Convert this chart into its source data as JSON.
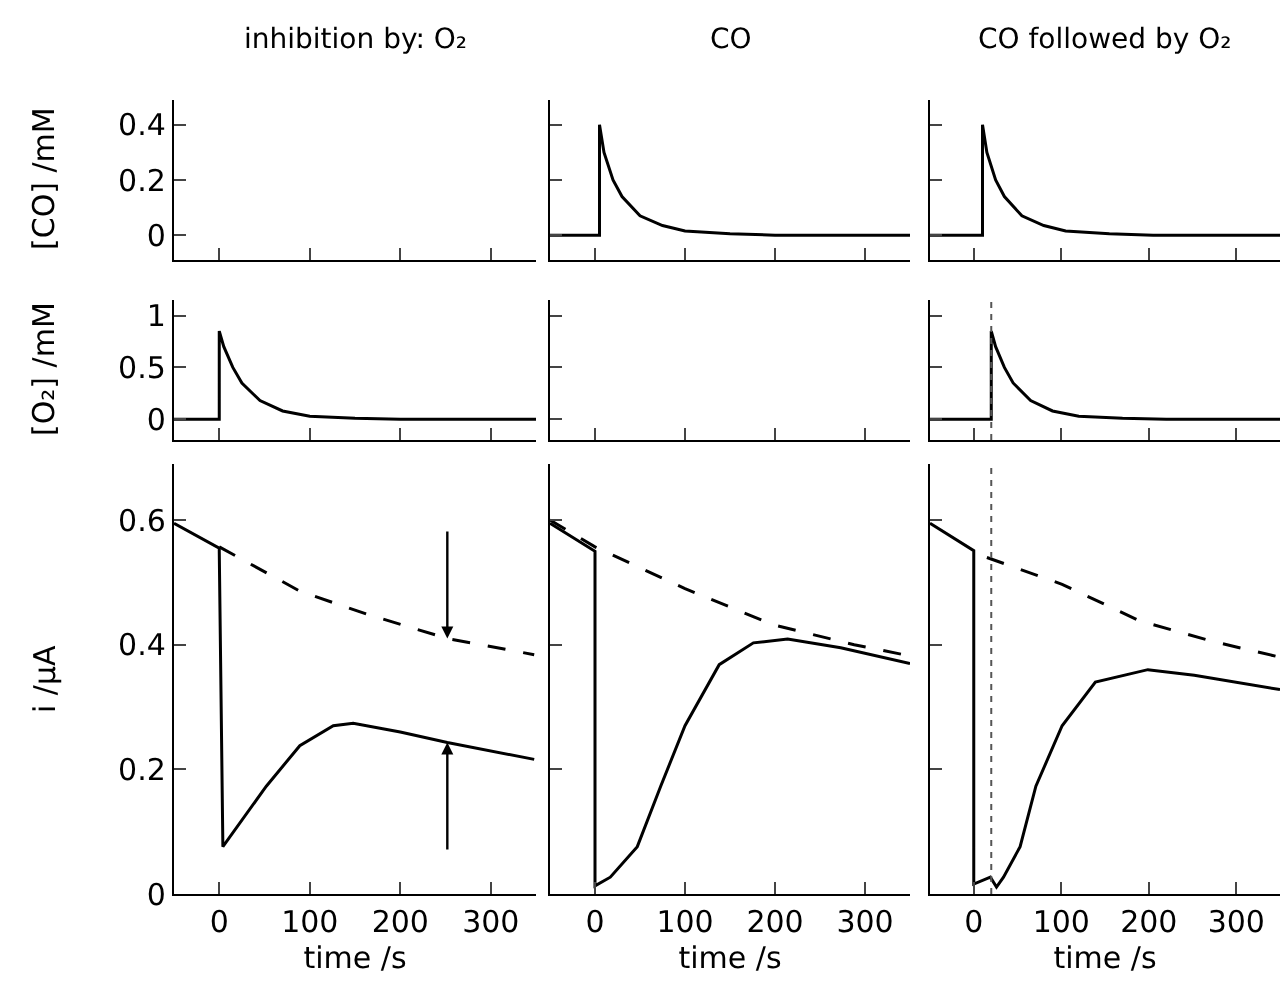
{
  "chart_data": [
    {
      "type": "line",
      "title": "inhibition by: O₂",
      "ylabel": "[CO] /mM",
      "xlim": [
        -50,
        350
      ],
      "ylim": [
        -0.09,
        0.49
      ],
      "xticks": [
        0,
        100,
        200,
        300
      ],
      "yticks": [
        0,
        0.2,
        0.4
      ],
      "tick_labels": "y"
    },
    {
      "type": "line",
      "title": "CO",
      "xlim": [
        -50,
        350
      ],
      "ylim": [
        -0.09,
        0.49
      ],
      "xticks": [
        0,
        100,
        200,
        300
      ],
      "yticks": [
        0,
        0.2,
        0.4
      ],
      "tick_labels": false,
      "series": [
        {
          "color": "#000000",
          "line_style": "solid",
          "x": [
            -50,
            5,
            5,
            10,
            20,
            30,
            50,
            75,
            100,
            150,
            200,
            350
          ],
          "values": [
            0,
            0,
            0.4,
            0.3,
            0.2,
            0.14,
            0.07,
            0.035,
            0.015,
            0.005,
            0,
            0
          ]
        }
      ]
    },
    {
      "type": "line",
      "title": "CO followed by O₂",
      "xlim": [
        -50,
        350
      ],
      "ylim": [
        -0.09,
        0.49
      ],
      "xticks": [
        0,
        100,
        200,
        300
      ],
      "yticks": [
        0,
        0.2,
        0.4
      ],
      "tick_labels": false,
      "series": [
        {
          "color": "#000000",
          "line_style": "solid",
          "x": [
            -50,
            10,
            10,
            15,
            25,
            35,
            55,
            80,
            105,
            155,
            205,
            350
          ],
          "values": [
            0,
            0,
            0.4,
            0.3,
            0.2,
            0.14,
            0.07,
            0.035,
            0.015,
            0.005,
            0,
            0
          ]
        }
      ]
    },
    {
      "type": "line",
      "ylabel": "[O₂] /mM",
      "xlim": [
        -50,
        350
      ],
      "ylim": [
        -0.2,
        1.15
      ],
      "xticks": [
        0,
        100,
        200,
        300
      ],
      "yticks": [
        0,
        0.5,
        1
      ],
      "tick_labels": "y",
      "series": [
        {
          "color": "#000000",
          "line_style": "solid",
          "x": [
            -50,
            0,
            0,
            5,
            15,
            25,
            45,
            70,
            100,
            150,
            200,
            350
          ],
          "values": [
            0,
            0,
            0.85,
            0.7,
            0.5,
            0.35,
            0.18,
            0.08,
            0.03,
            0.01,
            0,
            0
          ]
        }
      ]
    },
    {
      "type": "line",
      "xlim": [
        -50,
        350
      ],
      "ylim": [
        -0.2,
        1.15
      ],
      "xticks": [
        0,
        100,
        200,
        300
      ],
      "yticks": [
        0,
        0.5,
        1
      ],
      "tick_labels": false
    },
    {
      "type": "line",
      "xlim": [
        -50,
        350
      ],
      "ylim": [
        -0.2,
        1.15
      ],
      "xticks": [
        0,
        100,
        200,
        300
      ],
      "yticks": [
        0,
        0.5,
        1
      ],
      "tick_labels": false,
      "ref_lines": [
        {
          "axis": "x",
          "value": 20,
          "line_style": "dotted",
          "color": "#555555"
        }
      ],
      "series": [
        {
          "color": "#000000",
          "line_style": "solid",
          "x": [
            -50,
            20,
            20,
            25,
            35,
            45,
            65,
            90,
            120,
            170,
            220,
            350
          ],
          "values": [
            0,
            0,
            0.85,
            0.7,
            0.5,
            0.35,
            0.18,
            0.08,
            0.03,
            0.01,
            0,
            0
          ]
        }
      ]
    },
    {
      "type": "line",
      "ylabel": "i /µA",
      "xlabel": "time /s",
      "xlim": [
        -50,
        350
      ],
      "ylim": [
        0,
        0.69
      ],
      "xticks": [
        0,
        100,
        200,
        300
      ],
      "yticks": [
        0,
        0.2,
        0.4,
        0.6
      ],
      "series": [
        {
          "color": "#000000",
          "line_style": "solid",
          "x": [
            -50,
            0,
            0,
            4,
            52,
            89,
            126,
            148,
            200,
            252,
            348
          ],
          "values": [
            0.595,
            0.555,
            0.55,
            0.076,
            0.173,
            0.238,
            0.27,
            0.274,
            0.26,
            0.243,
            0.216
          ]
        },
        {
          "color": "#000000",
          "line_style": "dashed",
          "x": [
            0,
            89,
            163,
            252,
            348
          ],
          "values": [
            0.557,
            0.486,
            0.449,
            0.41,
            0.384
          ]
        }
      ]
    },
    {
      "type": "line",
      "xlabel": "time /s",
      "xlim": [
        -50,
        350
      ],
      "ylim": [
        0,
        0.69
      ],
      "xticks": [
        0,
        100,
        200,
        300
      ],
      "yticks": [
        0,
        0.2,
        0.4,
        0.6
      ],
      "tick_labels": "x",
      "series": [
        {
          "color": "#000000",
          "line_style": "solid",
          "x": [
            -50,
            0,
            0,
            17,
            47,
            73,
            100,
            138,
            176,
            214,
            273,
            350
          ],
          "values": [
            0.595,
            0.55,
            0.013,
            0.027,
            0.076,
            0.173,
            0.27,
            0.368,
            0.403,
            0.409,
            0.395,
            0.37
          ]
        },
        {
          "color": "#000000",
          "line_style": "dashed",
          "x": [
            -50,
            0,
            100,
            198,
            288,
            350
          ],
          "values": [
            0.6,
            0.557,
            0.49,
            0.432,
            0.4,
            0.382
          ]
        }
      ]
    },
    {
      "type": "line",
      "xlabel": "time /s",
      "xlim": [
        -50,
        350
      ],
      "ylim": [
        0,
        0.69
      ],
      "xticks": [
        0,
        100,
        200,
        300
      ],
      "yticks": [
        0,
        0.2,
        0.4,
        0.6
      ],
      "tick_labels": "x",
      "ref_lines": [
        {
          "axis": "x",
          "value": 20,
          "line_style": "dotted",
          "color": "#555555"
        }
      ],
      "series": [
        {
          "color": "#000000",
          "line_style": "solid",
          "x": [
            -50,
            0,
            0,
            19,
            26,
            34,
            53,
            71,
            101,
            139,
            199,
            252,
            350
          ],
          "values": [
            0.595,
            0.551,
            0.016,
            0.027,
            0.011,
            0.027,
            0.076,
            0.173,
            0.27,
            0.34,
            0.36,
            0.351,
            0.328
          ]
        },
        {
          "color": "#000000",
          "line_style": "dashed",
          "x": [
            15,
            101,
            190,
            274,
            350
          ],
          "values": [
            0.54,
            0.497,
            0.438,
            0.405,
            0.38
          ]
        }
      ]
    }
  ]
}
